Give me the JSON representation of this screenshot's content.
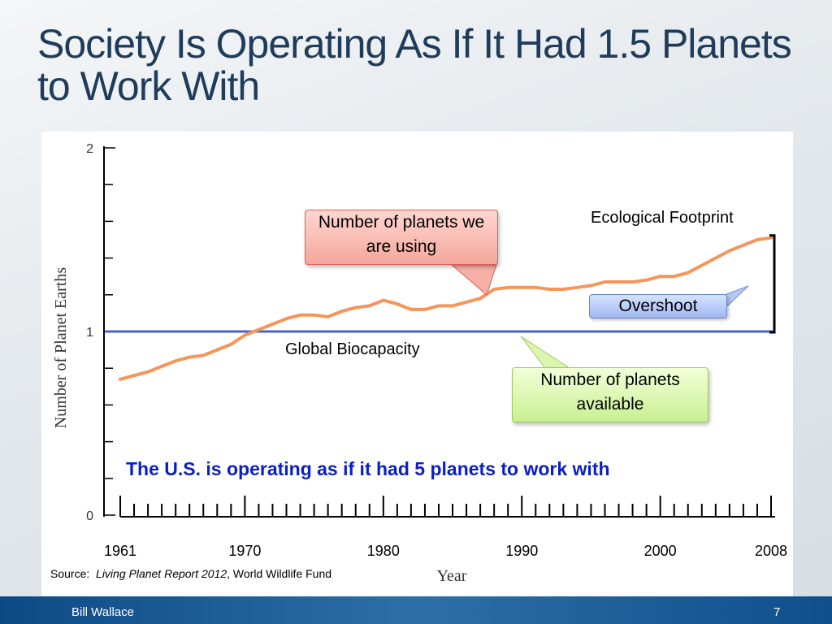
{
  "slide": {
    "title": "Society Is Operating As If It Had 1.5 Planets to Work With",
    "footer_author": "Bill Wallace",
    "page_number": "7"
  },
  "annotations": {
    "callout_using": "Number of planets we are using",
    "callout_available": "Number of planets available",
    "overshoot": "Overshoot",
    "ecological_footprint": "Ecological Footprint",
    "global_biocapacity": "Global Biocapacity",
    "us_note": "The U.S. is operating as if it had 5 planets to work with",
    "source_prefix": "Source:",
    "source_title": "Living Planet Report 2012",
    "source_org": ", World Wildlife Fund"
  },
  "colors": {
    "footprint_line": "#f4955a",
    "biocapacity_line": "#4a63c8",
    "note_text": "#0a1ec8",
    "title_text": "#1f3c5a"
  },
  "chart_data": {
    "type": "line",
    "title": "",
    "xlabel": "Year",
    "ylabel": "Number of Planet Earths",
    "xlim": [
      1961,
      2008
    ],
    "ylim": [
      0,
      2
    ],
    "x_tick_labels": [
      "1961",
      "1970",
      "1980",
      "1990",
      "2000",
      "2008"
    ],
    "y_tick_labels": [
      "0",
      "1",
      "2"
    ],
    "grid": false,
    "series": [
      {
        "name": "Ecological Footprint",
        "x": [
          1961,
          1962,
          1963,
          1964,
          1965,
          1966,
          1967,
          1968,
          1969,
          1970,
          1971,
          1972,
          1973,
          1974,
          1975,
          1976,
          1977,
          1978,
          1979,
          1980,
          1981,
          1982,
          1983,
          1984,
          1985,
          1986,
          1987,
          1988,
          1989,
          1990,
          1991,
          1992,
          1993,
          1994,
          1995,
          1996,
          1997,
          1998,
          1999,
          2000,
          2001,
          2002,
          2003,
          2004,
          2005,
          2006,
          2007,
          2008
        ],
        "y": [
          0.74,
          0.76,
          0.78,
          0.81,
          0.84,
          0.86,
          0.87,
          0.9,
          0.93,
          0.98,
          1.01,
          1.04,
          1.07,
          1.09,
          1.09,
          1.08,
          1.11,
          1.13,
          1.14,
          1.17,
          1.15,
          1.12,
          1.12,
          1.14,
          1.14,
          1.16,
          1.18,
          1.23,
          1.24,
          1.24,
          1.24,
          1.23,
          1.23,
          1.24,
          1.25,
          1.27,
          1.27,
          1.27,
          1.28,
          1.3,
          1.3,
          1.32,
          1.36,
          1.4,
          1.44,
          1.47,
          1.5,
          1.51
        ]
      },
      {
        "name": "Global Biocapacity",
        "x": [
          1961,
          2008
        ],
        "y": [
          1,
          1
        ]
      }
    ]
  }
}
